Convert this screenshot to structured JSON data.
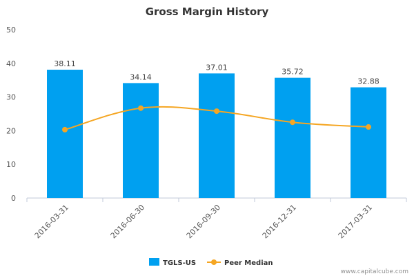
{
  "chart_data": {
    "type": "bar",
    "title": "Gross Margin History",
    "categories": [
      "2016-03-31",
      "2016-06-30",
      "2016-09-30",
      "2016-12-31",
      "2017-03-31"
    ],
    "series": [
      {
        "name": "TGLS-US",
        "type": "bar",
        "color": "#00a0f0",
        "values": [
          38.11,
          34.14,
          37.01,
          35.72,
          32.88
        ]
      },
      {
        "name": "Peer Median",
        "type": "line",
        "color": "#f5a623",
        "values": [
          20.3,
          26.7,
          25.8,
          22.5,
          21.1
        ]
      }
    ],
    "data_labels": [
      "38.11",
      "34.14",
      "37.01",
      "35.72",
      "32.88"
    ],
    "yticks": [
      "0",
      "10",
      "20",
      "30",
      "40",
      "50"
    ],
    "ylim": [
      0,
      50
    ],
    "grid": false,
    "legend_position": "bottom-center"
  },
  "credit": "www.capitalcube.com"
}
